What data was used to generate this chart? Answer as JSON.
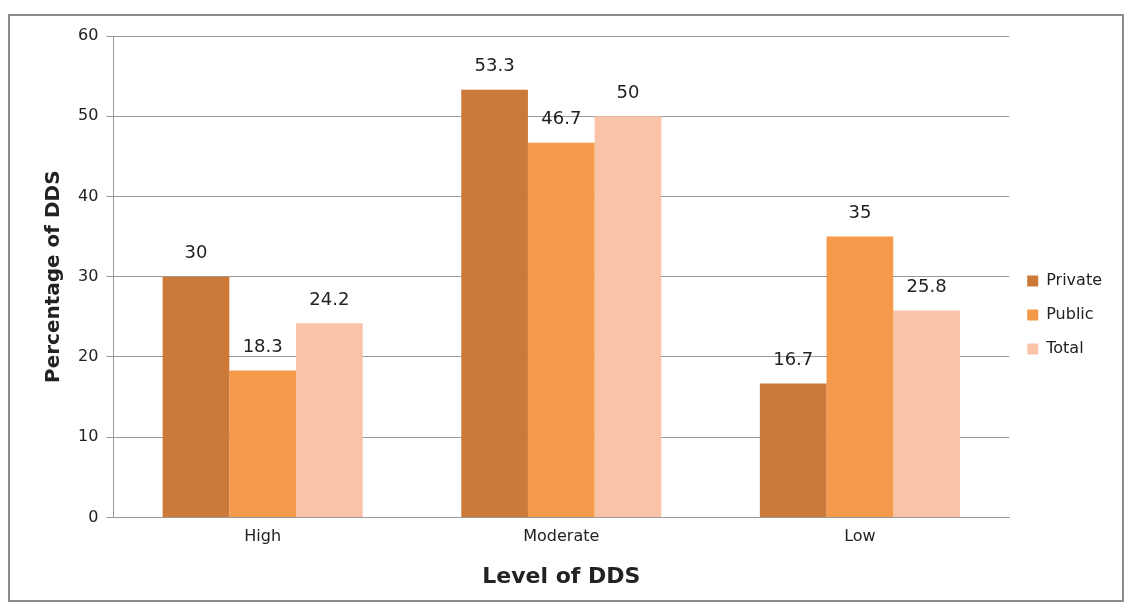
{
  "chart_data": {
    "type": "bar",
    "xlabel": "Level of DDS",
    "ylabel": "Percentage of DDS",
    "categories": [
      "High",
      "Moderate",
      "Low"
    ],
    "series": [
      {
        "name": "Private",
        "color": "#cc7a3a",
        "values": [
          30,
          53.3,
          16.7
        ]
      },
      {
        "name": "Public",
        "color": "#f59a4a",
        "values": [
          18.3,
          46.7,
          35
        ]
      },
      {
        "name": "Total",
        "color": "#f9c3a8",
        "values": [
          24.2,
          50,
          25.8
        ]
      }
    ],
    "ylim": [
      0,
      60
    ],
    "yticks": [
      0,
      10,
      20,
      30,
      40,
      50,
      60
    ],
    "grid": "y",
    "legend": "right",
    "data_labels": true
  }
}
